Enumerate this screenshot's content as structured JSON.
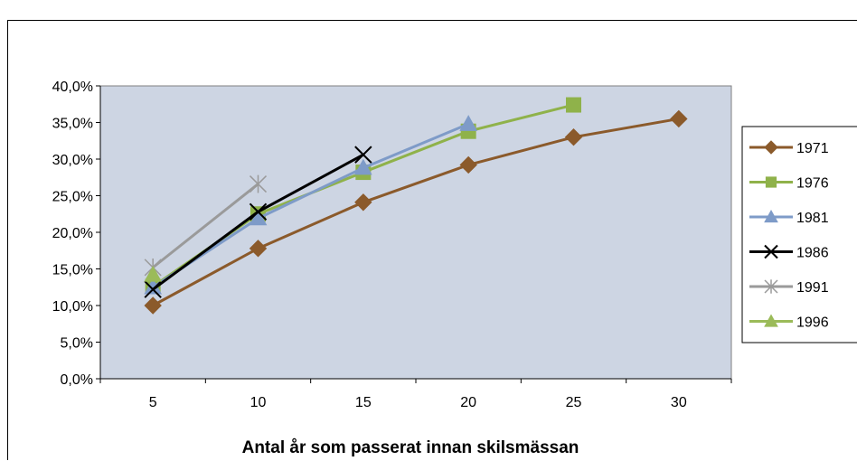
{
  "chart_data": {
    "type": "line",
    "title": "",
    "xlabel": "Antal år som passerat innan skilsmässan",
    "ylabel": "",
    "categories": [
      5,
      10,
      15,
      20,
      25,
      30
    ],
    "y_ticks": [
      "0,0%",
      "5,0%",
      "10,0%",
      "15,0%",
      "20,0%",
      "25,0%",
      "30,0%",
      "35,0%",
      "40,0%"
    ],
    "ylim": [
      0,
      40
    ],
    "grid": false,
    "legend_position": "right",
    "plot_background": "#cdd5e3",
    "series": [
      {
        "name": "1971",
        "color": "#8b5a2b",
        "marker": "diamond",
        "values": [
          10.0,
          17.8,
          24.1,
          29.2,
          33.0,
          35.5
        ]
      },
      {
        "name": "1976",
        "color": "#8fb24a",
        "marker": "square",
        "values": [
          12.6,
          22.5,
          28.2,
          33.8,
          37.4,
          null
        ]
      },
      {
        "name": "1981",
        "color": "#7e9bc8",
        "marker": "triangle",
        "values": [
          12.5,
          21.9,
          28.8,
          34.8,
          null,
          null
        ]
      },
      {
        "name": "1986",
        "color": "#000000",
        "marker": "x",
        "values": [
          12.2,
          22.8,
          30.6,
          null,
          null,
          null
        ]
      },
      {
        "name": "1991",
        "color": "#9a9a9a",
        "marker": "star",
        "values": [
          15.2,
          26.6,
          null,
          null,
          null,
          null
        ]
      },
      {
        "name": "1996",
        "color": "#9bbb59",
        "marker": "triangle",
        "values": [
          14.2,
          null,
          null,
          null,
          null,
          null
        ]
      }
    ]
  }
}
